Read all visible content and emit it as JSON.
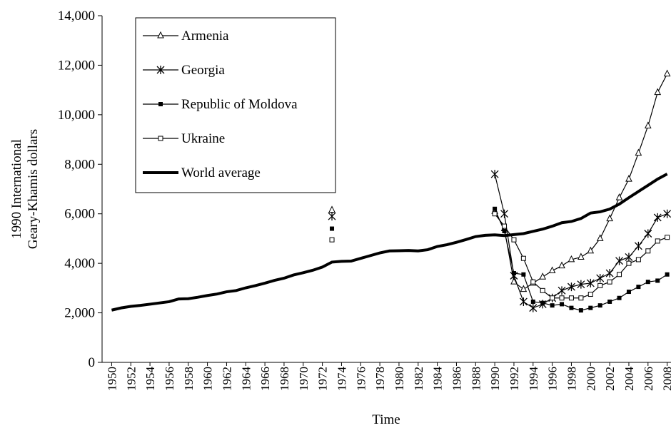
{
  "chart_data": {
    "type": "line",
    "xlabel": "Time",
    "ylabel": [
      "1990 International",
      "Geary-Khamis dollars"
    ],
    "x": [
      1950,
      1951,
      1952,
      1953,
      1954,
      1955,
      1956,
      1957,
      1958,
      1959,
      1960,
      1961,
      1962,
      1963,
      1964,
      1965,
      1966,
      1967,
      1968,
      1969,
      1970,
      1971,
      1972,
      1973,
      1974,
      1975,
      1976,
      1977,
      1978,
      1979,
      1980,
      1981,
      1982,
      1983,
      1984,
      1985,
      1986,
      1987,
      1988,
      1989,
      1990,
      1991,
      1992,
      1993,
      1994,
      1995,
      1996,
      1997,
      1998,
      1999,
      2000,
      2001,
      2002,
      2003,
      2004,
      2005,
      2006,
      2007,
      2008
    ],
    "xlim": [
      1949,
      2008.4
    ],
    "xticks": [
      1950,
      1952,
      1954,
      1956,
      1958,
      1960,
      1962,
      1964,
      1966,
      1968,
      1970,
      1972,
      1974,
      1976,
      1978,
      1980,
      1982,
      1984,
      1986,
      1988,
      1990,
      1992,
      1994,
      1996,
      1998,
      2000,
      2002,
      2004,
      2006,
      2008
    ],
    "ylim": [
      0,
      14000
    ],
    "yticks": [
      0,
      {
        "value": 2000,
        "label": "2,000"
      },
      {
        "value": 4000,
        "label": "4,000"
      },
      {
        "value": 6000,
        "label": "6,000"
      },
      {
        "value": 8000,
        "label": "8,000"
      },
      {
        "value": 10000,
        "label": "10,000"
      },
      {
        "value": 12000,
        "label": "12,000"
      },
      {
        "value": 14000,
        "label": "14,000"
      }
    ],
    "legend": "upper-left",
    "series": [
      {
        "name": "Armenia",
        "color": "#000000",
        "marker": "triangle",
        "values": [
          null,
          null,
          null,
          null,
          null,
          null,
          null,
          null,
          null,
          null,
          null,
          null,
          null,
          null,
          null,
          null,
          null,
          null,
          null,
          null,
          null,
          null,
          null,
          6150,
          null,
          null,
          null,
          null,
          null,
          null,
          null,
          null,
          null,
          null,
          null,
          null,
          null,
          null,
          null,
          null,
          6100,
          5400,
          3250,
          2950,
          3200,
          3450,
          3700,
          3900,
          4150,
          4250,
          4500,
          5000,
          5800,
          6650,
          7400,
          8450,
          9550,
          10900,
          11650
        ]
      },
      {
        "name": "Georgia",
        "color": "#000000",
        "marker": "asterisk",
        "values": [
          null,
          null,
          null,
          null,
          null,
          null,
          null,
          null,
          null,
          null,
          null,
          null,
          null,
          null,
          null,
          null,
          null,
          null,
          null,
          null,
          null,
          null,
          null,
          5900,
          null,
          null,
          null,
          null,
          null,
          null,
          null,
          null,
          null,
          null,
          null,
          null,
          null,
          null,
          null,
          null,
          7600,
          6000,
          3500,
          2450,
          2200,
          2350,
          2600,
          2900,
          3050,
          3150,
          3200,
          3400,
          3600,
          4100,
          4250,
          4700,
          5200,
          5850,
          6000
        ]
      },
      {
        "name": "Republic of Moldova",
        "color": "#000000",
        "marker": "filled-square",
        "values": [
          null,
          null,
          null,
          null,
          null,
          null,
          null,
          null,
          null,
          null,
          null,
          null,
          null,
          null,
          null,
          null,
          null,
          null,
          null,
          null,
          null,
          null,
          null,
          5400,
          null,
          null,
          null,
          null,
          null,
          null,
          null,
          null,
          null,
          null,
          null,
          null,
          null,
          null,
          null,
          null,
          6200,
          5300,
          3600,
          3550,
          2450,
          2400,
          2300,
          2350,
          2200,
          2100,
          2200,
          2300,
          2450,
          2600,
          2850,
          3050,
          3250,
          3300,
          3550
        ]
      },
      {
        "name": "Ukraine",
        "color": "#000000",
        "marker": "open-square",
        "values": [
          null,
          null,
          null,
          null,
          null,
          null,
          null,
          null,
          null,
          null,
          null,
          null,
          null,
          null,
          null,
          null,
          null,
          null,
          null,
          null,
          null,
          null,
          null,
          4950,
          null,
          null,
          null,
          null,
          null,
          null,
          null,
          null,
          null,
          null,
          null,
          null,
          null,
          null,
          null,
          null,
          6000,
          5500,
          4950,
          4200,
          3250,
          2900,
          2600,
          2600,
          2600,
          2600,
          2750,
          3100,
          3250,
          3550,
          4000,
          4150,
          4500,
          4900,
          5050
        ]
      },
      {
        "name": "World average",
        "color": "#000000",
        "marker": "none",
        "values": [
          2110,
          2200,
          2260,
          2300,
          2350,
          2400,
          2450,
          2560,
          2570,
          2630,
          2700,
          2760,
          2850,
          2900,
          3010,
          3100,
          3200,
          3310,
          3400,
          3530,
          3620,
          3720,
          3850,
          4050,
          4080,
          4090,
          4200,
          4310,
          4420,
          4500,
          4510,
          4520,
          4500,
          4550,
          4680,
          4750,
          4850,
          4960,
          5080,
          5130,
          5150,
          5120,
          5160,
          5200,
          5290,
          5380,
          5500,
          5640,
          5690,
          5810,
          6030,
          6080,
          6190,
          6390,
          6650,
          6900,
          7150,
          7400,
          7610
        ]
      }
    ]
  }
}
